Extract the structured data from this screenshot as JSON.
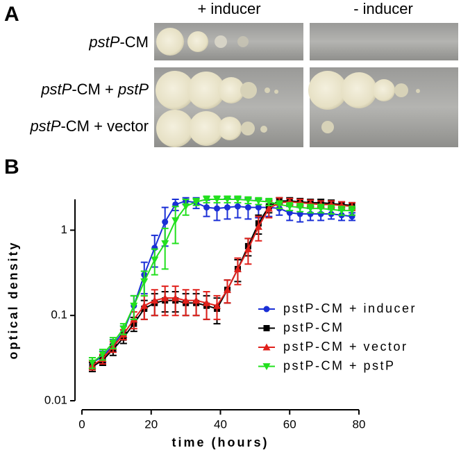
{
  "panel_a": {
    "letter": "A",
    "column_headers": [
      "+ inducer",
      "- inducer"
    ],
    "row_labels": [
      [
        "pstP",
        "-CM"
      ],
      [
        "pstP",
        "-CM + ",
        "pstP"
      ],
      [
        "pstP",
        "-CM + vector"
      ]
    ]
  },
  "chart_data": {
    "type": "line",
    "panel_letter": "B",
    "xlabel": "time (hours)",
    "ylabel": "optical density",
    "log_y": true,
    "xlim": [
      0,
      80
    ],
    "xticks": [
      0,
      20,
      40,
      60,
      80
    ],
    "ylim": [
      0.01,
      2.3
    ],
    "yticks": [
      0.01,
      0.1,
      1
    ],
    "legend": "lower right",
    "x": [
      3,
      6,
      9,
      12,
      15,
      18,
      21,
      24,
      27,
      30,
      33,
      36,
      39,
      42,
      45,
      48,
      51,
      54,
      57,
      60,
      63,
      66,
      69,
      72,
      75,
      78
    ],
    "series": [
      {
        "name": "pstP-CM + inducer",
        "color": "#1a2fd6",
        "marker": "circle",
        "values": [
          0.028,
          0.033,
          0.045,
          0.065,
          0.13,
          0.3,
          0.62,
          1.25,
          2.0,
          2.2,
          2.1,
          1.85,
          1.8,
          1.85,
          1.9,
          1.85,
          1.85,
          1.85,
          1.8,
          1.6,
          1.55,
          1.55,
          1.55,
          1.55,
          1.5,
          1.45
        ],
        "errors": [
          0.004,
          0.005,
          0.007,
          0.01,
          0.04,
          0.12,
          0.25,
          0.6,
          0.3,
          0.2,
          0.3,
          0.4,
          0.5,
          0.5,
          0.5,
          0.5,
          0.45,
          0.4,
          0.3,
          0.3,
          0.3,
          0.25,
          0.25,
          0.2,
          0.2,
          0.15
        ]
      },
      {
        "name": "pstP-CM",
        "color": "#000000",
        "marker": "square",
        "values": [
          0.025,
          0.03,
          0.04,
          0.055,
          0.08,
          0.12,
          0.14,
          0.15,
          0.15,
          0.14,
          0.14,
          0.13,
          0.12,
          0.2,
          0.35,
          0.65,
          1.2,
          1.9,
          2.2,
          2.2,
          2.15,
          2.1,
          2.1,
          2.05,
          2.0,
          1.95
        ],
        "errors": [
          0.003,
          0.004,
          0.006,
          0.008,
          0.015,
          0.03,
          0.04,
          0.04,
          0.04,
          0.04,
          0.04,
          0.04,
          0.04,
          0.06,
          0.1,
          0.15,
          0.3,
          0.3,
          0.2,
          0.2,
          0.2,
          0.2,
          0.2,
          0.2,
          0.15,
          0.15
        ]
      },
      {
        "name": "pstP-CM + vector",
        "color": "#e0201b",
        "marker": "triangle-up",
        "values": [
          0.026,
          0.031,
          0.043,
          0.06,
          0.09,
          0.13,
          0.15,
          0.16,
          0.16,
          0.15,
          0.15,
          0.14,
          0.13,
          0.2,
          0.35,
          0.6,
          1.1,
          1.8,
          2.1,
          2.15,
          2.1,
          2.05,
          2.0,
          2.0,
          1.95,
          1.9
        ],
        "errors": [
          0.003,
          0.004,
          0.006,
          0.008,
          0.02,
          0.04,
          0.05,
          0.06,
          0.06,
          0.05,
          0.05,
          0.05,
          0.04,
          0.06,
          0.12,
          0.2,
          0.35,
          0.4,
          0.3,
          0.2,
          0.2,
          0.2,
          0.2,
          0.2,
          0.2,
          0.2
        ]
      },
      {
        "name": "pstP-CM + pstP",
        "color": "#22e01e",
        "marker": "triangle-down",
        "values": [
          0.028,
          0.035,
          0.048,
          0.07,
          0.13,
          0.25,
          0.45,
          0.7,
          1.3,
          1.9,
          2.15,
          2.3,
          2.3,
          2.3,
          2.3,
          2.25,
          2.2,
          2.15,
          2.0,
          1.9,
          1.85,
          1.8,
          1.8,
          1.75,
          1.7,
          1.7
        ],
        "errors": [
          0.004,
          0.005,
          0.007,
          0.01,
          0.04,
          0.08,
          0.15,
          0.35,
          0.6,
          0.4,
          0.2,
          0.2,
          0.2,
          0.2,
          0.2,
          0.2,
          0.2,
          0.2,
          0.2,
          0.2,
          0.2,
          0.2,
          0.2,
          0.2,
          0.2,
          0.2
        ]
      }
    ]
  }
}
